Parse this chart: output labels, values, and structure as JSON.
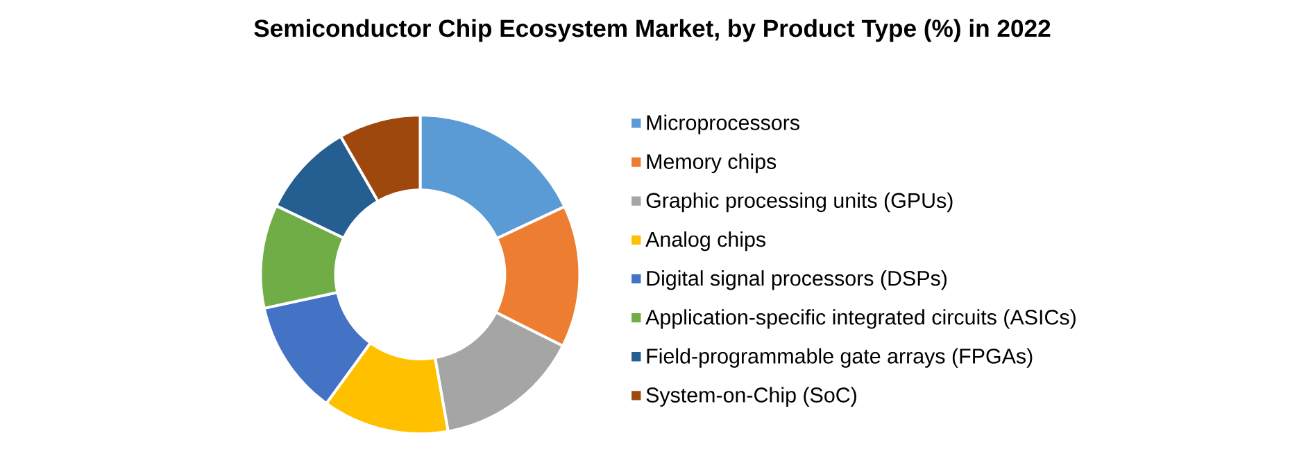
{
  "chart_data": {
    "type": "donut",
    "title": "Semiconductor Chip Ecosystem Market, by Product Type (%) in 2022",
    "categories": [
      "Microprocessors",
      "Memory chips",
      "Graphic processing units (GPUs)",
      "Analog chips",
      "Digital signal processors (DSPs)",
      "Application-specific integrated circuits (ASICs)",
      "Field-programmable gate arrays (FPGAs)",
      "System-on-Chip (SoC)"
    ],
    "values": [
      18,
      14.4,
      14.8,
      12.8,
      11.6,
      10.5,
      9.6,
      8.3
    ],
    "colors": [
      "#5b9bd5",
      "#ed7d31",
      "#a5a5a5",
      "#ffc000",
      "#4472c4",
      "#70ad47",
      "#255e91",
      "#9e480e"
    ],
    "legend": "right"
  }
}
